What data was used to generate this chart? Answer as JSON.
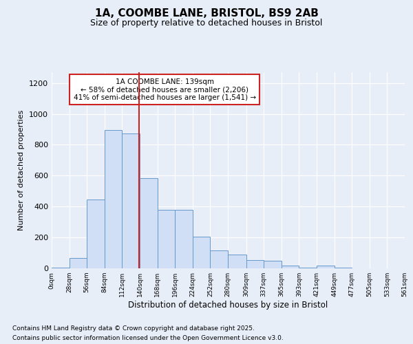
{
  "title_line1": "1A, COOMBE LANE, BRISTOL, BS9 2AB",
  "title_line2": "Size of property relative to detached houses in Bristol",
  "xlabel": "Distribution of detached houses by size in Bristol",
  "ylabel": "Number of detached properties",
  "bar_edges": [
    0,
    28,
    56,
    84,
    112,
    140,
    168,
    196,
    224,
    252,
    280,
    309,
    337,
    365,
    393,
    421,
    449,
    477,
    505,
    533,
    561
  ],
  "bar_heights": [
    5,
    65,
    445,
    895,
    875,
    585,
    380,
    380,
    205,
    115,
    90,
    55,
    50,
    20,
    5,
    20,
    5,
    0,
    0,
    0,
    0
  ],
  "bar_facecolor": "#d0dff5",
  "bar_edgecolor": "#6699cc",
  "property_size": 139,
  "property_label": "1A COOMBE LANE: 139sqm",
  "annotation_line2": "← 58% of detached houses are smaller (2,206)",
  "annotation_line3": "41% of semi-detached houses are larger (1,541) →",
  "vline_color": "#cc2222",
  "annotation_box_edgecolor": "#cc2222",
  "annotation_box_facecolor": "#ffffff",
  "ylim": [
    0,
    1270
  ],
  "background_color": "#e8eef8",
  "grid_color": "#ffffff",
  "footnote_line1": "Contains HM Land Registry data © Crown copyright and database right 2025.",
  "footnote_line2": "Contains public sector information licensed under the Open Government Licence v3.0.",
  "tick_labels": [
    "0sqm",
    "28sqm",
    "56sqm",
    "84sqm",
    "112sqm",
    "140sqm",
    "168sqm",
    "196sqm",
    "224sqm",
    "252sqm",
    "280sqm",
    "309sqm",
    "337sqm",
    "365sqm",
    "393sqm",
    "421sqm",
    "449sqm",
    "477sqm",
    "505sqm",
    "533sqm",
    "561sqm"
  ],
  "yticks": [
    0,
    200,
    400,
    600,
    800,
    1000,
    1200
  ]
}
